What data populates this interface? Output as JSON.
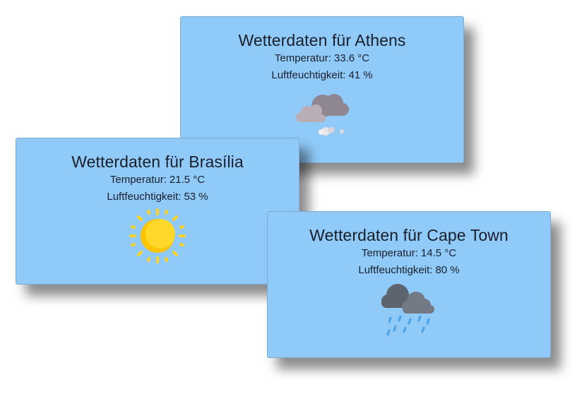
{
  "cards": [
    {
      "title": "Wetterdaten für Athens",
      "temperature_label": "Temperatur:",
      "temperature_value": "33.6 °C",
      "humidity_label": "Luftfeuchtigkeit:",
      "humidity_value": "41 %",
      "icon": "cloudy-icon"
    },
    {
      "title": "Wetterdaten für Brasília",
      "temperature_label": "Temperatur:",
      "temperature_value": "21.5 °C",
      "humidity_label": "Luftfeuchtigkeit:",
      "humidity_value": "53 %",
      "icon": "sun-icon"
    },
    {
      "title": "Wetterdaten für Cape Town",
      "temperature_label": "Temperatur:",
      "temperature_value": "14.5 °C",
      "humidity_label": "Luftfeuchtigkeit:",
      "humidity_value": "80 %",
      "icon": "rain-icon"
    }
  ],
  "colors": {
    "card_background": "#90caf9",
    "sun": "#ffd21f",
    "cloud_dark": "#6f7480",
    "rain": "#4aa3e8"
  }
}
